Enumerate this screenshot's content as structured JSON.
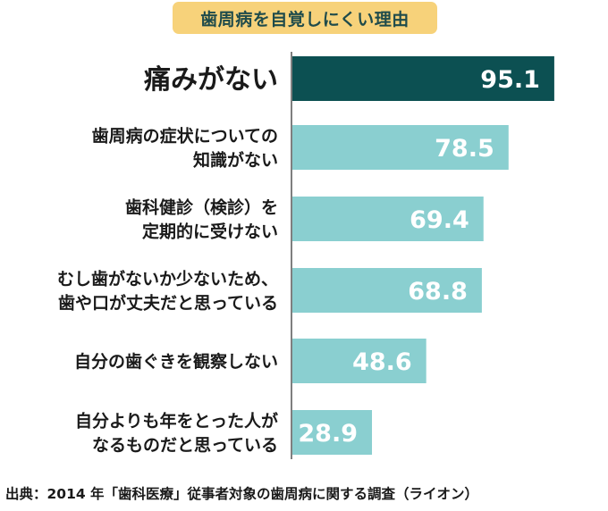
{
  "title": "歯周病を自覚しにくい理由",
  "chart_data": {
    "type": "bar",
    "orientation": "horizontal",
    "title": "歯周病を自覚しにくい理由",
    "categories": [
      [
        "痛みがない"
      ],
      [
        "歯周病の症状についての",
        "知識がない"
      ],
      [
        "歯科健診（検診）を",
        "定期的に受けない"
      ],
      [
        "むし歯がないか少ないため、",
        "歯や口が丈夫だと思っている"
      ],
      [
        "自分の歯ぐきを観察しない"
      ],
      [
        "自分よりも年をとった人が",
        "なるものだと思っている"
      ]
    ],
    "values": [
      95.1,
      78.5,
      69.4,
      68.8,
      48.6,
      28.9
    ],
    "value_labels": [
      "95.1",
      "78.5",
      "69.4",
      "68.8",
      "48.6",
      "28.9"
    ],
    "xlim": [
      0,
      100
    ],
    "highlight_index": 0,
    "colors": {
      "highlight": "#0c5052",
      "bar": "#8acfd0",
      "label": "#ffffff",
      "axis": "#555555"
    }
  },
  "source": "出典：2014 年「歯科医療」従事者対象の歯周病に関する調査（ライオン）"
}
